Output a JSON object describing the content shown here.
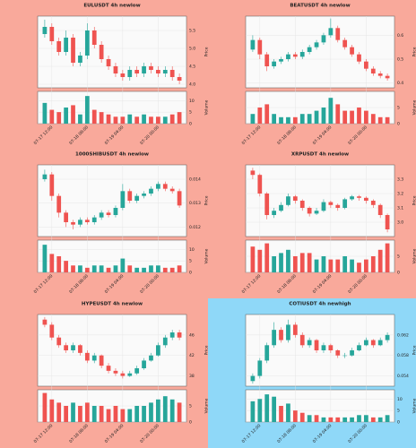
{
  "chart_data": [
    {
      "type": "candlestick",
      "title": "EULUSDT 4h newlow",
      "background": "#f9a99b",
      "up_color": "#26a69a",
      "down_color": "#ef5350",
      "ylabel": "Price",
      "y2label": "Volume",
      "candles": [
        [
          5.4,
          5.8,
          5.3,
          5.6
        ],
        [
          5.6,
          5.7,
          5.1,
          5.2
        ],
        [
          5.2,
          5.3,
          4.8,
          4.9
        ],
        [
          4.9,
          5.5,
          4.8,
          5.3
        ],
        [
          5.3,
          5.4,
          4.5,
          4.6
        ],
        [
          4.6,
          4.9,
          4.5,
          4.8
        ],
        [
          4.8,
          5.7,
          4.7,
          5.5
        ],
        [
          5.5,
          5.6,
          5.0,
          5.1
        ],
        [
          5.1,
          5.2,
          4.6,
          4.7
        ],
        [
          4.7,
          4.8,
          4.4,
          4.5
        ],
        [
          4.5,
          4.6,
          4.2,
          4.3
        ],
        [
          4.3,
          4.4,
          4.1,
          4.2
        ],
        [
          4.2,
          4.5,
          4.1,
          4.4
        ],
        [
          4.4,
          4.5,
          4.2,
          4.3
        ],
        [
          4.3,
          4.6,
          4.2,
          4.5
        ],
        [
          4.5,
          4.6,
          4.3,
          4.4
        ],
        [
          4.4,
          4.5,
          4.2,
          4.3
        ],
        [
          4.3,
          4.5,
          4.2,
          4.4
        ],
        [
          4.4,
          4.5,
          4.1,
          4.2
        ],
        [
          4.2,
          4.3,
          4.0,
          4.1
        ]
      ],
      "volume": [
        9,
        6,
        5,
        7,
        8,
        4,
        12,
        6,
        5,
        4,
        3,
        3,
        4,
        3,
        4,
        3,
        3,
        3,
        4,
        5
      ],
      "xlim": [
        -1,
        20
      ],
      "xticks": [
        {
          "value": 1,
          "label": "07-17 12:00"
        },
        {
          "value": 6,
          "label": "07-18 08:00"
        },
        {
          "value": 11,
          "label": "07-19 04:00"
        },
        {
          "value": 16,
          "label": "07-20 00:00"
        }
      ],
      "ylim": [
        3.9,
        5.9
      ],
      "yticks": [
        {
          "value": 4,
          "label": "4.0"
        },
        4.5,
        {
          "value": 5,
          "label": "5.0"
        },
        5.5
      ],
      "y2lim": [
        0,
        14
      ],
      "y2ticks": [
        0,
        5,
        10
      ]
    },
    {
      "type": "candlestick",
      "title": "BEATUSDT 4h newlow",
      "background": "#f9a99b",
      "up_color": "#26a69a",
      "down_color": "#ef5350",
      "ylabel": "Price",
      "y2label": "Volume",
      "candles": [
        [
          0.54,
          0.6,
          0.53,
          0.58
        ],
        [
          0.58,
          0.59,
          0.5,
          0.52
        ],
        [
          0.52,
          0.53,
          0.45,
          0.47
        ],
        [
          0.47,
          0.5,
          0.46,
          0.49
        ],
        [
          0.49,
          0.51,
          0.48,
          0.5
        ],
        [
          0.5,
          0.53,
          0.49,
          0.52
        ],
        [
          0.52,
          0.53,
          0.5,
          0.51
        ],
        [
          0.51,
          0.54,
          0.5,
          0.53
        ],
        [
          0.53,
          0.56,
          0.52,
          0.55
        ],
        [
          0.55,
          0.58,
          0.54,
          0.57
        ],
        [
          0.57,
          0.61,
          0.56,
          0.6
        ],
        [
          0.6,
          0.67,
          0.59,
          0.63
        ],
        [
          0.63,
          0.64,
          0.57,
          0.58
        ],
        [
          0.58,
          0.59,
          0.54,
          0.55
        ],
        [
          0.55,
          0.56,
          0.51,
          0.52
        ],
        [
          0.52,
          0.53,
          0.48,
          0.49
        ],
        [
          0.49,
          0.5,
          0.45,
          0.46
        ],
        [
          0.46,
          0.47,
          0.43,
          0.44
        ],
        [
          0.44,
          0.45,
          0.42,
          0.43
        ],
        [
          0.43,
          0.44,
          0.41,
          0.42
        ]
      ],
      "volume": [
        3,
        5,
        6,
        3,
        2,
        2,
        2,
        3,
        3,
        4,
        5,
        8,
        6,
        4,
        4,
        5,
        4,
        3,
        2,
        2
      ],
      "xlim": [
        -1,
        20
      ],
      "xticks": [
        {
          "value": 1,
          "label": "07-17 12:00"
        },
        {
          "value": 6,
          "label": "07-18 08:00"
        },
        {
          "value": 11,
          "label": "07-19 04:00"
        },
        {
          "value": 16,
          "label": "07-20 00:00"
        }
      ],
      "ylim": [
        0.38,
        0.68
      ],
      "yticks": [
        0.4,
        0.5,
        0.6
      ],
      "y2lim": [
        0,
        10
      ],
      "y2ticks": [
        0,
        5
      ]
    },
    {
      "type": "candlestick",
      "title": "1000SHIBUSDT 4h newlow",
      "background": "#f9a99b",
      "up_color": "#26a69a",
      "down_color": "#ef5350",
      "ylabel": "Price",
      "y2label": "Volume",
      "candles": [
        [
          0.014,
          0.0144,
          0.0139,
          0.0142
        ],
        [
          0.0142,
          0.0143,
          0.0131,
          0.0133
        ],
        [
          0.0133,
          0.0134,
          0.0124,
          0.0126
        ],
        [
          0.0126,
          0.0127,
          0.012,
          0.0122
        ],
        [
          0.0122,
          0.0123,
          0.0119,
          0.0121
        ],
        [
          0.0121,
          0.0124,
          0.012,
          0.0123
        ],
        [
          0.0123,
          0.0124,
          0.0121,
          0.0122
        ],
        [
          0.0122,
          0.0125,
          0.0121,
          0.0124
        ],
        [
          0.0124,
          0.0127,
          0.0123,
          0.0126
        ],
        [
          0.0126,
          0.0127,
          0.0124,
          0.0125
        ],
        [
          0.0125,
          0.0129,
          0.0124,
          0.0128
        ],
        [
          0.0128,
          0.0138,
          0.0127,
          0.0135
        ],
        [
          0.0135,
          0.0136,
          0.013,
          0.0131
        ],
        [
          0.0131,
          0.0134,
          0.013,
          0.0133
        ],
        [
          0.0133,
          0.0135,
          0.0132,
          0.0134
        ],
        [
          0.0134,
          0.0137,
          0.0133,
          0.0136
        ],
        [
          0.0136,
          0.0139,
          0.0135,
          0.0138
        ],
        [
          0.0138,
          0.0139,
          0.0135,
          0.0136
        ],
        [
          0.0136,
          0.0137,
          0.0134,
          0.0135
        ],
        [
          0.0135,
          0.0136,
          0.0128,
          0.0129
        ]
      ],
      "volume": [
        12,
        8,
        7,
        5,
        3,
        3,
        2,
        3,
        3,
        2,
        3,
        6,
        3,
        2,
        2,
        3,
        3,
        2,
        2,
        3
      ],
      "xlim": [
        -1,
        20
      ],
      "xticks": [
        {
          "value": 1,
          "label": "07-17 12:00"
        },
        {
          "value": 6,
          "label": "07-18 08:00"
        },
        {
          "value": 11,
          "label": "07-19 04:00"
        },
        {
          "value": 16,
          "label": "07-20 00:00"
        }
      ],
      "ylim": [
        0.0116,
        0.0146
      ],
      "yticks": [
        0.012,
        0.013,
        0.014
      ],
      "y2lim": [
        0,
        14
      ],
      "y2ticks": [
        0,
        5,
        10
      ]
    },
    {
      "type": "candlestick",
      "title": "XRPUSDT 4h newlow",
      "background": "#f9a99b",
      "up_color": "#26a69a",
      "down_color": "#ef5350",
      "ylabel": "Price",
      "y2label": "Volume",
      "candles": [
        [
          3.36,
          3.38,
          3.3,
          3.33
        ],
        [
          3.33,
          3.34,
          3.18,
          3.2
        ],
        [
          3.2,
          3.21,
          3.02,
          3.05
        ],
        [
          3.05,
          3.1,
          3.03,
          3.08
        ],
        [
          3.08,
          3.14,
          3.07,
          3.12
        ],
        [
          3.12,
          3.2,
          3.11,
          3.18
        ],
        [
          3.18,
          3.19,
          3.13,
          3.15
        ],
        [
          3.15,
          3.16,
          3.08,
          3.1
        ],
        [
          3.1,
          3.11,
          3.04,
          3.06
        ],
        [
          3.06,
          3.1,
          3.05,
          3.08
        ],
        [
          3.08,
          3.16,
          3.07,
          3.14
        ],
        [
          3.14,
          3.15,
          3.1,
          3.12
        ],
        [
          3.12,
          3.13,
          3.08,
          3.1
        ],
        [
          3.1,
          3.17,
          3.09,
          3.16
        ],
        [
          3.16,
          3.19,
          3.15,
          3.18
        ],
        [
          3.18,
          3.19,
          3.15,
          3.17
        ],
        [
          3.17,
          3.18,
          3.13,
          3.15
        ],
        [
          3.15,
          3.16,
          3.1,
          3.12
        ],
        [
          3.12,
          3.13,
          3.03,
          3.05
        ],
        [
          3.05,
          3.06,
          2.93,
          2.95
        ]
      ],
      "volume": [
        8,
        7,
        9,
        5,
        6,
        7,
        5,
        6,
        6,
        4,
        5,
        4,
        4,
        5,
        4,
        3,
        4,
        5,
        7,
        9
      ],
      "xlim": [
        -1,
        20
      ],
      "xticks": [
        {
          "value": 1,
          "label": "07-17 12:00"
        },
        {
          "value": 6,
          "label": "07-18 08:00"
        },
        {
          "value": 11,
          "label": "07-19 04:00"
        },
        {
          "value": 16,
          "label": "07-20 00:00"
        }
      ],
      "ylim": [
        2.9,
        3.4
      ],
      "yticks": [
        {
          "value": 3,
          "label": "3.0"
        },
        3.1,
        3.2,
        3.3
      ],
      "y2lim": [
        0,
        10
      ],
      "y2ticks": [
        0,
        5
      ]
    },
    {
      "type": "candlestick",
      "title": "HYPEUSDT 4h newlow",
      "background": "#f9a99b",
      "up_color": "#26a69a",
      "down_color": "#ef5350",
      "ylabel": "Price",
      "y2label": "Volume",
      "candles": [
        [
          49,
          49.5,
          47.5,
          48
        ],
        [
          48,
          48.5,
          45,
          45.5
        ],
        [
          45.5,
          46,
          43.5,
          44
        ],
        [
          44,
          44.5,
          42.5,
          43
        ],
        [
          43,
          44.5,
          42.5,
          44
        ],
        [
          44,
          44.2,
          42,
          42.5
        ],
        [
          42.5,
          43,
          40.5,
          41
        ],
        [
          41,
          42.5,
          40.5,
          42
        ],
        [
          42,
          42.2,
          39.5,
          40
        ],
        [
          40,
          40.5,
          38.5,
          39
        ],
        [
          39,
          39.5,
          38,
          38.5
        ],
        [
          38.5,
          39,
          37.5,
          38
        ],
        [
          38,
          39,
          37.8,
          38.5
        ],
        [
          38.5,
          40,
          38.2,
          39.5
        ],
        [
          39.5,
          41.5,
          39.2,
          41
        ],
        [
          41,
          42.5,
          40.8,
          42
        ],
        [
          42,
          44.5,
          41.8,
          44
        ],
        [
          44,
          46,
          43.5,
          45.5
        ],
        [
          45.5,
          47,
          45,
          46.5
        ],
        [
          46.5,
          47,
          45,
          45.5
        ]
      ],
      "volume": [
        9,
        7,
        6,
        5,
        6,
        5,
        6,
        5,
        5,
        4,
        5,
        4,
        4,
        5,
        5,
        6,
        7,
        8,
        7,
        6
      ],
      "xlim": [
        -1,
        20
      ],
      "xticks": [
        {
          "value": 1,
          "label": "07-17 12:00"
        },
        {
          "value": 6,
          "label": "07-18 08:00"
        },
        {
          "value": 11,
          "label": "07-19 04:00"
        },
        {
          "value": 16,
          "label": "07-20 00:00"
        }
      ],
      "ylim": [
        36,
        50
      ],
      "yticks": [
        38,
        42,
        46
      ],
      "y2lim": [
        0,
        10
      ],
      "y2ticks": [
        0,
        5
      ]
    },
    {
      "type": "candlestick",
      "title": "COTIUSDT 4h newhigh",
      "background": "#8fd8f8",
      "up_color": "#26a69a",
      "down_color": "#ef5350",
      "ylabel": "Price",
      "y2label": "Volume",
      "candles": [
        [
          0.053,
          0.0545,
          0.0525,
          0.054
        ],
        [
          0.054,
          0.0575,
          0.0535,
          0.057
        ],
        [
          0.057,
          0.0605,
          0.0565,
          0.06
        ],
        [
          0.06,
          0.0645,
          0.0595,
          0.063
        ],
        [
          0.063,
          0.0635,
          0.0605,
          0.061
        ],
        [
          0.061,
          0.065,
          0.0605,
          0.064
        ],
        [
          0.064,
          0.0645,
          0.0615,
          0.062
        ],
        [
          0.062,
          0.0625,
          0.0595,
          0.06
        ],
        [
          0.06,
          0.0615,
          0.0595,
          0.061
        ],
        [
          0.061,
          0.0612,
          0.0585,
          0.059
        ],
        [
          0.059,
          0.0605,
          0.0585,
          0.06
        ],
        [
          0.06,
          0.0603,
          0.0585,
          0.059
        ],
        [
          0.059,
          0.0592,
          0.0575,
          0.058
        ],
        [
          0.058,
          0.0585,
          0.0575,
          0.058
        ],
        [
          0.058,
          0.0595,
          0.0578,
          0.059
        ],
        [
          0.059,
          0.0605,
          0.0588,
          0.06
        ],
        [
          0.06,
          0.0615,
          0.0598,
          0.061
        ],
        [
          0.061,
          0.0612,
          0.0595,
          0.06
        ],
        [
          0.06,
          0.0615,
          0.0598,
          0.061
        ],
        [
          0.061,
          0.0625,
          0.0605,
          0.062
        ]
      ],
      "volume": [
        9,
        10,
        12,
        11,
        7,
        8,
        5,
        4,
        3,
        3,
        2,
        2,
        2,
        2,
        2,
        3,
        3,
        2,
        2,
        3
      ],
      "xlim": [
        -1,
        20
      ],
      "xticks": [
        {
          "value": 1,
          "label": "07-17 12:00"
        },
        {
          "value": 6,
          "label": "07-18 08:00"
        },
        {
          "value": 11,
          "label": "07-19 04:00"
        },
        {
          "value": 16,
          "label": "07-20 00:00"
        }
      ],
      "ylim": [
        0.052,
        0.066
      ],
      "yticks": [
        0.054,
        0.058,
        0.062
      ],
      "y2lim": [
        0,
        14
      ],
      "y2ticks": [
        0,
        5,
        10
      ]
    }
  ]
}
